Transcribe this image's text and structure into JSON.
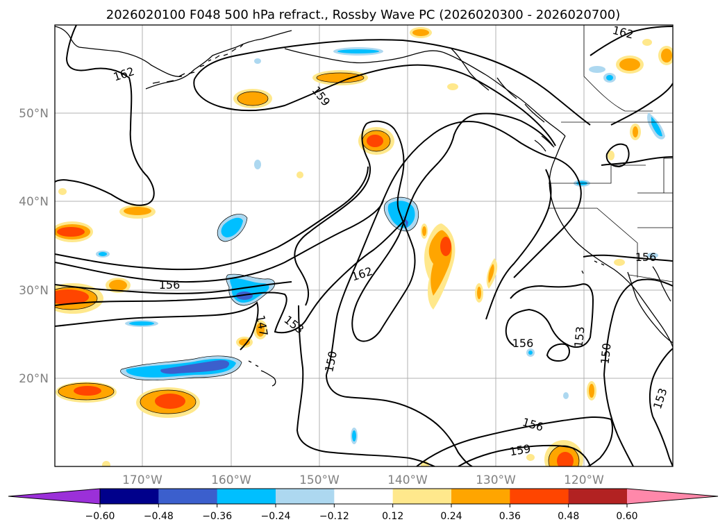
{
  "title": "2026020100 F048 500 hPa refract., Rossby Wave PC (2026020300 - 2026020700)",
  "lon_labels": [
    "170°W",
    "160°W",
    "150°W",
    "140°W",
    "130°W",
    "120°W"
  ],
  "lat_labels": [
    "50°N",
    "40°N",
    "30°N",
    "20°N"
  ],
  "contour_labels": [
    "162",
    "159",
    "162",
    "156",
    "147",
    "153",
    "150",
    "162",
    "156",
    "153",
    "150",
    "156",
    "153",
    "156",
    "159"
  ],
  "colorbar": {
    "ticks": [
      "−0.60",
      "−0.48",
      "−0.36",
      "−0.24",
      "−0.12",
      "0.12",
      "0.24",
      "0.36",
      "0.48",
      "0.60"
    ],
    "colors": [
      "#9b30d9",
      "#00008b",
      "#3b5fcd",
      "#00bfff",
      "#add8f0",
      "#ffffff",
      "#ffe88c",
      "#ffa500",
      "#ff4500",
      "#b22222",
      "#ff88aa"
    ]
  }
}
